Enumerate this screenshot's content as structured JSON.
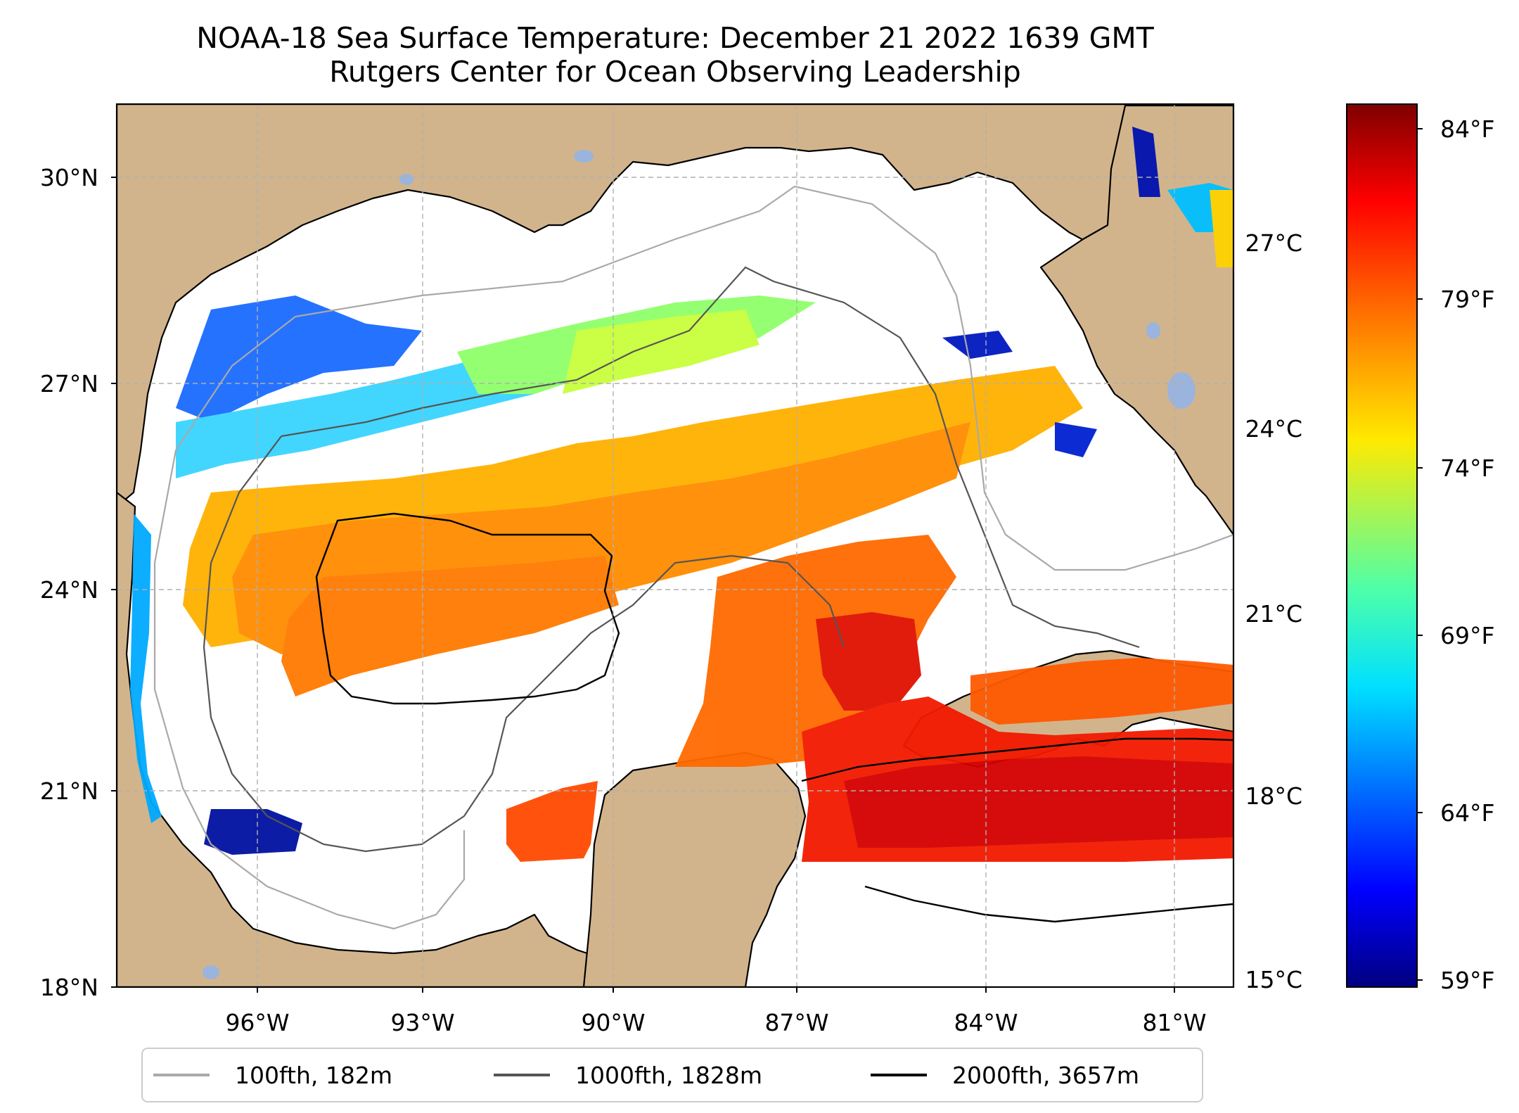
{
  "title": {
    "line1": "NOAA-18 Sea Surface Temperature: December 21 2022 1639 GMT",
    "line2": "Rutgers Center for Ocean Observing Leadership"
  },
  "map": {
    "lat_labels": [
      "30°N",
      "27°N",
      "24°N",
      "21°N",
      "18°N"
    ],
    "lon_labels": [
      "96°W",
      "93°W",
      "90°W",
      "87°W",
      "84°W",
      "81°W"
    ],
    "land_color": "#d2b48c",
    "lake_color": "#9ab4dd",
    "ocean_color": "#ffffff"
  },
  "colorbar": {
    "celsius_labels": [
      "27°C",
      "24°C",
      "21°C",
      "18°C",
      "15°C"
    ],
    "fahrenheit_labels": [
      "84°F",
      "79°F",
      "74°F",
      "69°F",
      "64°F",
      "59°F"
    ],
    "colormap": "jet"
  },
  "legend": {
    "items": [
      {
        "label": "100fth, 182m",
        "color": "#a9a9a9"
      },
      {
        "label": "1000fth, 1828m",
        "color": "#555555"
      },
      {
        "label": "2000fth, 3657m",
        "color": "#000000"
      }
    ]
  }
}
